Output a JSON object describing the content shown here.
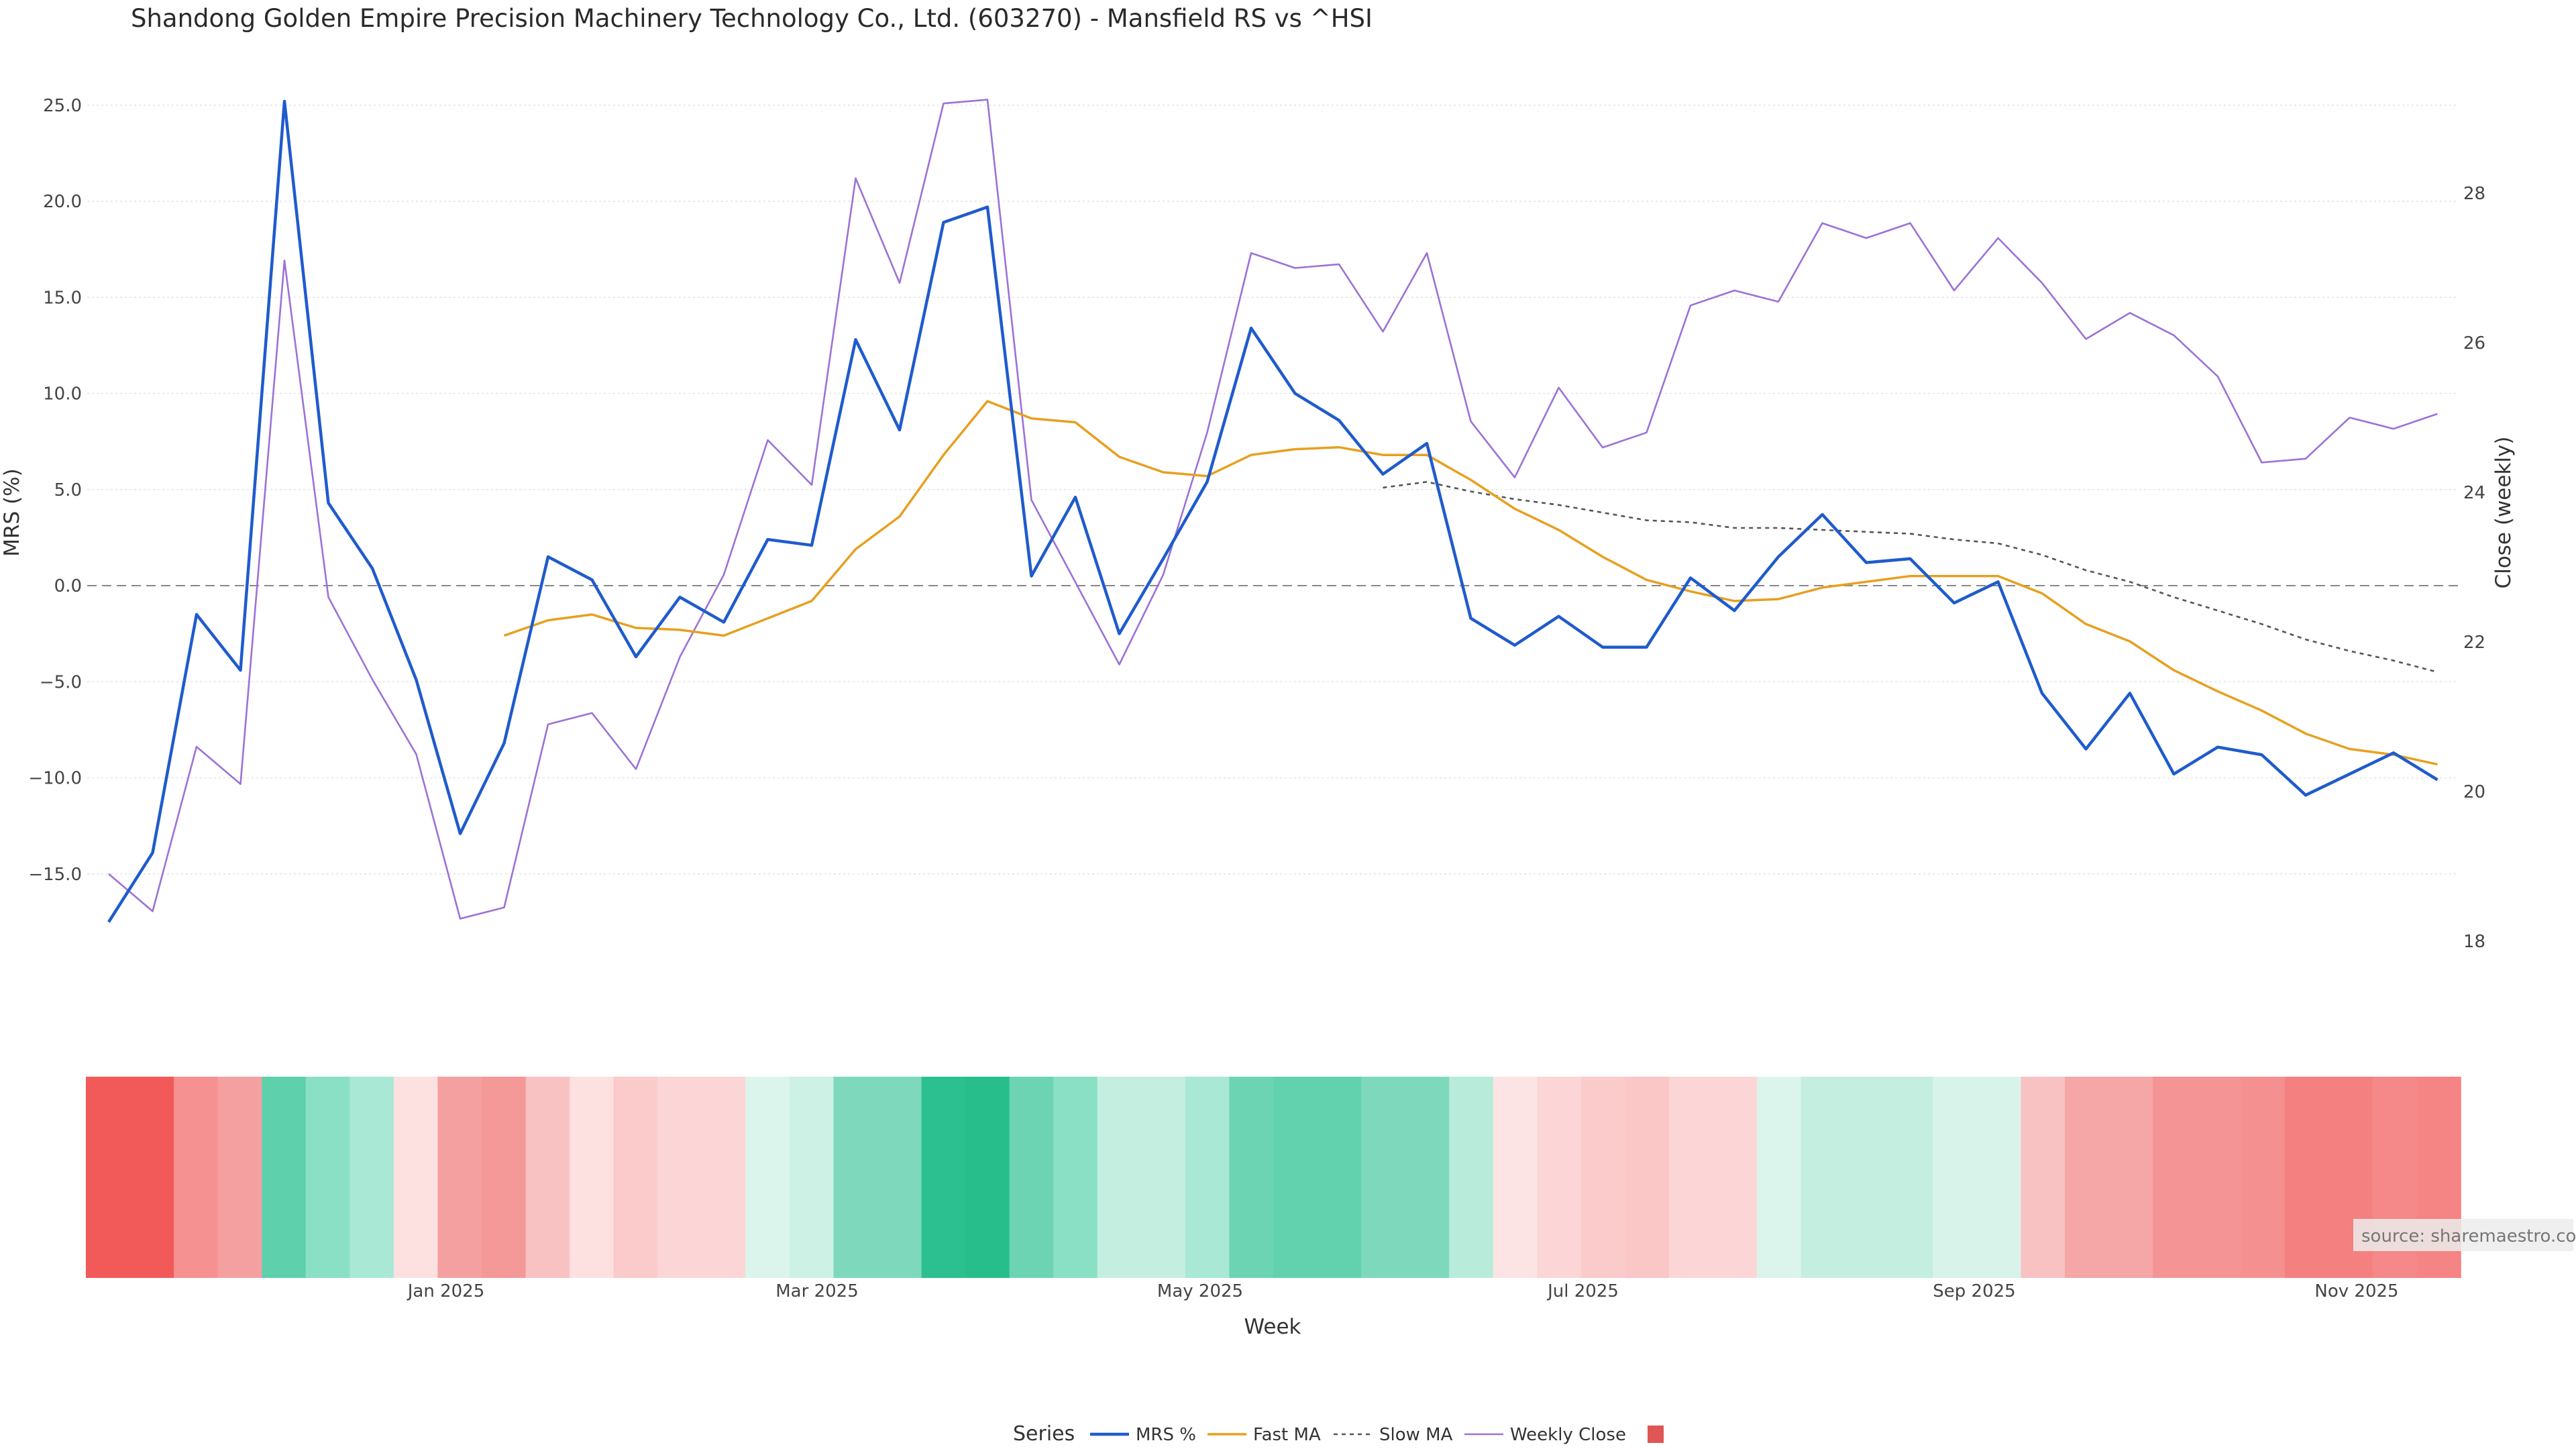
{
  "chart_data": {
    "type": "line",
    "title": "Shandong Golden Empire Precision Machinery Technology Co., Ltd. (603270) - Mansfield RS vs ^HSI",
    "xlabel": "Week",
    "ylabel_left": "MRS (%)",
    "ylabel_right": "Close (weekly)",
    "ylim_left": [
      -18.5,
      26.2
    ],
    "ylim_right": [
      17.6,
      29.7
    ],
    "yticks_left": [
      "25.0",
      "20.0",
      "15.0",
      "10.0",
      "5.0",
      "0.0",
      "−5.0",
      "−10.0",
      "−15.0"
    ],
    "yticks_right": [
      "28",
      "26",
      "24",
      "22",
      "20",
      "18"
    ],
    "xticks": [
      "Jan 2025",
      "Mar 2025",
      "May 2025",
      "Jul 2025",
      "Sep 2025",
      "Nov 2025"
    ],
    "source": "source: sharemaestro.com",
    "legend_title": "Series",
    "grid": true,
    "legend_position": "bottom-center",
    "colors": {
      "mrs": "#1f5bcc",
      "fast": "#e6a020",
      "slow": "#555555",
      "close": "#9b72d6",
      "zero_line": "#888888",
      "legend_square": "#e05555"
    },
    "series": [
      {
        "name": "MRS %",
        "values": [
          -17.5,
          -13.9,
          -1.5,
          -4.4,
          25.2,
          4.3,
          0.9,
          -4.9,
          -12.9,
          -8.2,
          1.5,
          0.3,
          -3.7,
          -0.6,
          -1.9,
          2.4,
          2.1,
          12.8,
          8.1,
          18.9,
          19.7,
          0.5,
          4.6,
          -2.5,
          1.4,
          5.4,
          13.4,
          10.0,
          8.6,
          5.8,
          7.4,
          -1.7,
          -3.1,
          -1.6,
          -3.2,
          -3.2,
          0.4,
          -1.3,
          1.5,
          3.7,
          1.2,
          1.4,
          -0.9,
          0.2,
          -5.6,
          -8.5,
          -5.6,
          -9.8,
          -8.4,
          -8.8,
          -10.9,
          -9.8,
          -8.7,
          -10.1
        ]
      },
      {
        "name": "Fast MA",
        "values": [
          null,
          null,
          null,
          null,
          null,
          null,
          null,
          null,
          null,
          -2.6,
          -1.8,
          -1.5,
          -2.2,
          -2.3,
          -2.6,
          -1.7,
          -0.8,
          1.9,
          3.6,
          6.8,
          9.6,
          8.7,
          8.5,
          6.7,
          5.9,
          5.7,
          6.8,
          7.1,
          7.2,
          6.8,
          6.8,
          5.5,
          4.0,
          2.9,
          1.5,
          0.3,
          -0.3,
          -0.8,
          -0.7,
          -0.1,
          0.2,
          0.5,
          0.5,
          0.5,
          -0.4,
          -2.0,
          -2.9,
          -4.4,
          -5.5,
          -6.5,
          -7.7,
          -8.5,
          -8.8,
          -9.3
        ]
      },
      {
        "name": "Slow MA",
        "values": [
          null,
          null,
          null,
          null,
          null,
          null,
          null,
          null,
          null,
          null,
          null,
          null,
          null,
          null,
          null,
          null,
          null,
          null,
          null,
          null,
          null,
          null,
          null,
          null,
          null,
          null,
          null,
          null,
          null,
          5.1,
          5.4,
          4.9,
          4.5,
          4.2,
          3.8,
          3.4,
          3.3,
          3.0,
          3.0,
          2.9,
          2.8,
          2.7,
          2.4,
          2.2,
          1.6,
          0.8,
          0.2,
          -0.6,
          -1.3,
          -2.0,
          -2.8,
          -3.4,
          -3.9,
          -4.5
        ]
      },
      {
        "name": "Weekly Close",
        "values": [
          18.9,
          18.4,
          20.6,
          20.1,
          27.1,
          22.6,
          21.5,
          20.5,
          18.3,
          18.45,
          20.9,
          21.05,
          20.3,
          21.8,
          22.9,
          24.7,
          24.1,
          28.2,
          26.8,
          29.2,
          29.25,
          23.9,
          22.8,
          21.7,
          22.9,
          24.8,
          27.2,
          27.0,
          27.05,
          26.15,
          27.2,
          24.95,
          24.2,
          25.4,
          24.6,
          24.8,
          26.5,
          26.7,
          26.55,
          27.6,
          27.4,
          27.6,
          26.7,
          27.4,
          26.8,
          26.05,
          26.4,
          26.1,
          25.55,
          24.4,
          24.45,
          25.0,
          24.85,
          25.05
        ]
      }
    ],
    "heatmap_strip": [
      "#f25a5a",
      "#f25a5a",
      "#f59191",
      "#f5a0a0",
      "#5fd0ac",
      "#8ae0c4",
      "#a8e8d4",
      "#fde0e0",
      "#f5a0a0",
      "#f59898",
      "#f9c2c2",
      "#fde0e0",
      "#fbcaca",
      "#fcd6d6",
      "#fcd6d6",
      "#dcf5ec",
      "#cdf1e4",
      "#7ed9bc",
      "#7ed9bc",
      "#2cc090",
      "#28be8c",
      "#6cd4b2",
      "#8ae0c4",
      "#c4eee0",
      "#c4eee0",
      "#a8e8d4",
      "#6cd4b2",
      "#62d2ae",
      "#62d2ae",
      "#7ed9bc",
      "#7ed9bc",
      "#b8ebda",
      "#fde4e4",
      "#fcd6d6",
      "#fbcaca",
      "#fbc6c6",
      "#fcd6d6",
      "#fcd6d6",
      "#dcf5ec",
      "#c4eee0",
      "#c4eee0",
      "#c4eee0",
      "#d8f4ea",
      "#d8f4ea",
      "#f9c2c2",
      "#f5a6a6",
      "#f5a6a6",
      "#f59494",
      "#f59494",
      "#f59090",
      "#f58080",
      "#f58080",
      "#f58888",
      "#f58484"
    ]
  }
}
